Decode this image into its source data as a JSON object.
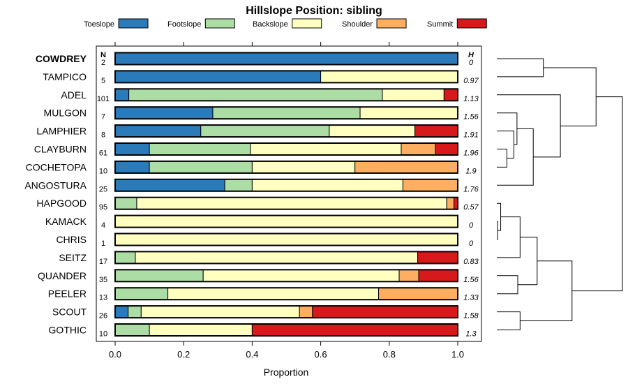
{
  "chart_data": {
    "type": "bar",
    "orientation": "horizontal",
    "stacked": true,
    "title": "Hillslope Position: sibling",
    "xlabel": "Proportion",
    "xlim": [
      0,
      1
    ],
    "xticks": [
      "0.0",
      "0.2",
      "0.4",
      "0.6",
      "0.8",
      "1.0"
    ],
    "n_header": "N",
    "h_header": "H",
    "legend_placement": "top",
    "legend": [
      {
        "name": "Toeslope",
        "color": "#2b7bba"
      },
      {
        "name": "Footslope",
        "color": "#abdda4"
      },
      {
        "name": "Backslope",
        "color": "#ffffbf"
      },
      {
        "name": "Shoulder",
        "color": "#fdae61"
      },
      {
        "name": "Summit",
        "color": "#d7191c"
      }
    ],
    "rows": [
      {
        "name": "COWDREY",
        "n": "2",
        "h": "0",
        "values": [
          1.0,
          0,
          0,
          0,
          0
        ]
      },
      {
        "name": "TAMPICO",
        "n": "5",
        "h": "0.97",
        "values": [
          0.6,
          0,
          0.4,
          0,
          0
        ]
      },
      {
        "name": "ADEL",
        "n": "101",
        "h": "1.13",
        "values": [
          0.04,
          0.74,
          0.18,
          0,
          0.04
        ]
      },
      {
        "name": "MULGON",
        "n": "7",
        "h": "1.56",
        "values": [
          0.285,
          0.43,
          0.285,
          0,
          0
        ]
      },
      {
        "name": "LAMPHIER",
        "n": "8",
        "h": "1.91",
        "values": [
          0.25,
          0.375,
          0.25,
          0,
          0.125
        ]
      },
      {
        "name": "CLAYBURN",
        "n": "61",
        "h": "1.96",
        "values": [
          0.1,
          0.295,
          0.44,
          0.1,
          0.065
        ]
      },
      {
        "name": "COCHETOPA",
        "n": "10",
        "h": "1.9",
        "values": [
          0.1,
          0.3,
          0.3,
          0.3,
          0
        ]
      },
      {
        "name": "ANGOSTURA",
        "n": "25",
        "h": "1.76",
        "values": [
          0.32,
          0.08,
          0.44,
          0.16,
          0
        ]
      },
      {
        "name": "HAPGOOD",
        "n": "95",
        "h": "0.57",
        "values": [
          0,
          0.063,
          0.905,
          0.021,
          0.011
        ]
      },
      {
        "name": "KAMACK",
        "n": "4",
        "h": "0",
        "values": [
          0,
          0,
          1.0,
          0,
          0
        ]
      },
      {
        "name": "CHRIS",
        "n": "1",
        "h": "0",
        "values": [
          0,
          0,
          1.0,
          0,
          0
        ]
      },
      {
        "name": "SEITZ",
        "n": "17",
        "h": "0.83",
        "values": [
          0,
          0.059,
          0.824,
          0,
          0.117
        ]
      },
      {
        "name": "QUANDER",
        "n": "35",
        "h": "1.56",
        "values": [
          0,
          0.257,
          0.572,
          0.057,
          0.114
        ]
      },
      {
        "name": "PEELER",
        "n": "13",
        "h": "1.33",
        "values": [
          0,
          0.154,
          0.615,
          0.231,
          0
        ]
      },
      {
        "name": "SCOUT",
        "n": "26",
        "h": "1.58",
        "values": [
          0.038,
          0.038,
          0.462,
          0.038,
          0.424
        ]
      },
      {
        "name": "GOTHIC",
        "n": "10",
        "h": "1.3",
        "values": [
          0,
          0.1,
          0.3,
          0,
          0.6
        ]
      }
    ],
    "dendrogram": {
      "leaf_order": [
        "COWDREY",
        "TAMPICO",
        "ADEL",
        "MULGON",
        "LAMPHIER",
        "CLAYBURN",
        "COCHETOPA",
        "ANGOSTURA",
        "HAPGOOD",
        "KAMACK",
        "CHRIS",
        "SEITZ",
        "QUANDER",
        "PEELER",
        "SCOUT",
        "GOTHIC"
      ],
      "merges": [
        [
          9,
          10,
          0.01
        ],
        [
          8,
          16,
          0.05
        ],
        [
          5,
          6,
          0.13
        ],
        [
          4,
          18,
          0.22
        ],
        [
          3,
          19,
          0.26
        ],
        [
          12,
          13,
          0.27
        ],
        [
          14,
          15,
          0.3
        ],
        [
          17,
          11,
          0.3
        ],
        [
          7,
          20,
          0.47
        ],
        [
          0,
          1,
          0.6
        ],
        [
          21,
          23,
          0.52
        ],
        [
          2,
          24,
          0.82
        ],
        [
          26,
          22,
          0.97
        ],
        [
          25,
          27,
          1.28
        ],
        [
          28,
          29,
          1.62
        ]
      ]
    }
  }
}
